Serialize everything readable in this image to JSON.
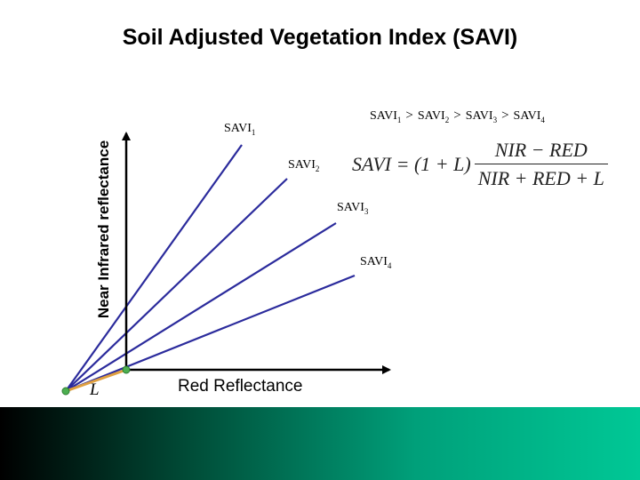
{
  "title": "Soil Adjusted Vegetation Index (SAVI)",
  "y_axis_label": "Near Infrared reflectance",
  "x_axis_label": "Red Reflectance",
  "l_symbol": "L",
  "lines": [
    {
      "base": "SAVI",
      "sub": "1"
    },
    {
      "base": "SAVI",
      "sub": "2"
    },
    {
      "base": "SAVI",
      "sub": "3"
    },
    {
      "base": "SAVI",
      "sub": "4"
    }
  ],
  "inequality": {
    "terms": [
      {
        "base": "SAVI",
        "sub": "1"
      },
      {
        "base": "SAVI",
        "sub": "2"
      },
      {
        "base": "SAVI",
        "sub": "3"
      },
      {
        "base": "SAVI",
        "sub": "4"
      }
    ],
    "operator": ">"
  },
  "formula": {
    "lhs": "SAVI = (1 + L)",
    "numerator": "NIR − RED",
    "denominator": "NIR + RED + L"
  },
  "colors": {
    "line": "#2b2b9c",
    "axis": "#000000",
    "soil_line": "#e0a040",
    "marker": "#4caf50"
  }
}
